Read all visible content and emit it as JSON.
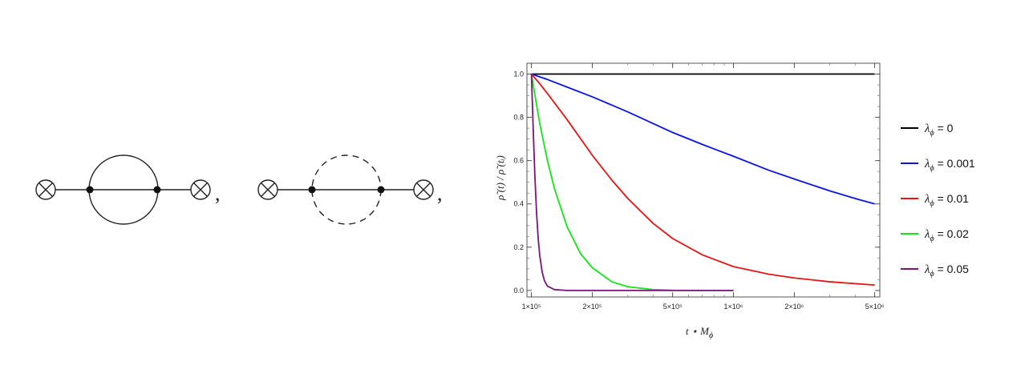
{
  "diagrams": [
    {
      "name": "solid-loop",
      "separator": ","
    },
    {
      "name": "dashed-loop",
      "separator": ","
    }
  ],
  "chart_data": {
    "type": "line",
    "xscale": "log",
    "xlim": [
      95000,
      5300000
    ],
    "ylim": [
      -0.03,
      1.05
    ],
    "xticks": [
      {
        "value": 100000,
        "label": "1×10⁵"
      },
      {
        "value": 200000,
        "label": "2×10⁵"
      },
      {
        "value": 500000,
        "label": "5×10⁵"
      },
      {
        "value": 1000000,
        "label": "1×10⁶"
      },
      {
        "value": 2000000,
        "label": "2×10⁶"
      },
      {
        "value": 5000000,
        "label": "5×10⁶"
      }
    ],
    "yticks": [
      {
        "value": 0.0,
        "label": "0.0"
      },
      {
        "value": 0.2,
        "label": "0.2"
      },
      {
        "value": 0.4,
        "label": "0.4"
      },
      {
        "value": 0.6,
        "label": "0.6"
      },
      {
        "value": 0.8,
        "label": "0.8"
      },
      {
        "value": 1.0,
        "label": "1.0"
      }
    ],
    "xlabel": {
      "base": "t ⋆ M",
      "sub": "ϕ"
    },
    "ylabel": {
      "text": "ρ̃ (t) / ρ̃ (tᵢ)"
    },
    "legend_position": "right",
    "series": [
      {
        "name": "λϕ = 0",
        "sym": "λ",
        "sub": "ϕ",
        "eq": " = 0",
        "color": "#000000",
        "x": [
          100000,
          5000000
        ],
        "y": [
          1.0,
          1.0
        ]
      },
      {
        "name": "λϕ = 0.001",
        "sym": "λ",
        "sub": "ϕ",
        "eq": " = 0.001",
        "color": "#0a14e6",
        "x": [
          100000,
          120000,
          150000,
          200000,
          300000,
          500000,
          700000,
          1000000,
          1500000,
          2000000,
          3000000,
          4000000,
          5000000
        ],
        "y": [
          1.0,
          0.975,
          0.94,
          0.895,
          0.825,
          0.73,
          0.675,
          0.62,
          0.555,
          0.515,
          0.46,
          0.425,
          0.4
        ]
      },
      {
        "name": "λϕ = 0.01",
        "sym": "λ",
        "sub": "ϕ",
        "eq": " = 0.01",
        "color": "#e61414",
        "x": [
          100000,
          110000,
          120000,
          150000,
          200000,
          250000,
          300000,
          400000,
          500000,
          700000,
          1000000,
          1500000,
          2000000,
          3000000,
          5000000
        ],
        "y": [
          1.0,
          0.955,
          0.91,
          0.79,
          0.625,
          0.51,
          0.425,
          0.31,
          0.24,
          0.165,
          0.11,
          0.075,
          0.058,
          0.04,
          0.025
        ]
      },
      {
        "name": "λϕ = 0.02",
        "sym": "λ",
        "sub": "ϕ",
        "eq": " = 0.02",
        "color": "#14e614",
        "x": [
          100000,
          105000,
          110000,
          120000,
          130000,
          150000,
          175000,
          200000,
          250000,
          300000,
          400000,
          500000,
          700000,
          1000000
        ],
        "y": [
          1.0,
          0.88,
          0.77,
          0.6,
          0.47,
          0.295,
          0.17,
          0.105,
          0.04,
          0.017,
          0.004,
          0.001,
          0.0,
          0.0
        ]
      },
      {
        "name": "λϕ = 0.05",
        "sym": "λ",
        "sub": "ϕ",
        "eq": " = 0.05",
        "color": "#7a157a",
        "x": [
          100000,
          102000,
          104000,
          106000,
          108000,
          110000,
          113000,
          116000,
          120000,
          130000,
          150000,
          200000,
          500000,
          1000000
        ],
        "y": [
          1.0,
          0.75,
          0.53,
          0.36,
          0.24,
          0.16,
          0.085,
          0.045,
          0.02,
          0.004,
          0.0,
          0.0,
          0.0,
          0.0
        ]
      }
    ]
  }
}
